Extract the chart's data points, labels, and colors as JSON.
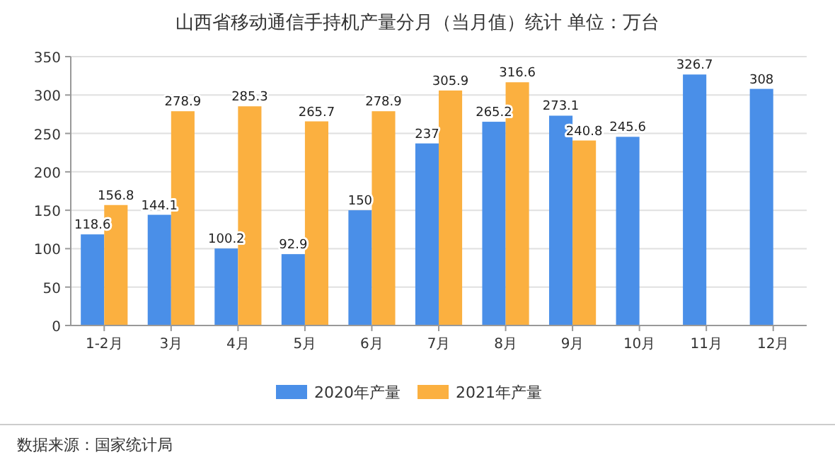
{
  "chart_data": {
    "type": "bar",
    "title": "山西省移动通信手持机产量分月（当月值）统计 单位：万台",
    "categories": [
      "1-2月",
      "3月",
      "4月",
      "5月",
      "6月",
      "7月",
      "8月",
      "9月",
      "10月",
      "11月",
      "12月"
    ],
    "series": [
      {
        "name": "2020年产量",
        "color": "#4a8fe8",
        "values": [
          118.6,
          144.1,
          100.2,
          92.9,
          150,
          237,
          265.2,
          273.1,
          245.6,
          326.7,
          308
        ]
      },
      {
        "name": "2021年产量",
        "color": "#fbb040",
        "values": [
          156.8,
          278.9,
          285.3,
          265.7,
          278.9,
          305.9,
          316.6,
          240.8,
          null,
          null,
          null
        ]
      }
    ],
    "ylim": [
      0,
      350
    ],
    "yticks": [
      0,
      50,
      100,
      150,
      200,
      250,
      300,
      350
    ],
    "grid": "y",
    "legend": "bottom",
    "data_labels": true,
    "annotations": [
      "数据来源：国家统计局"
    ]
  }
}
